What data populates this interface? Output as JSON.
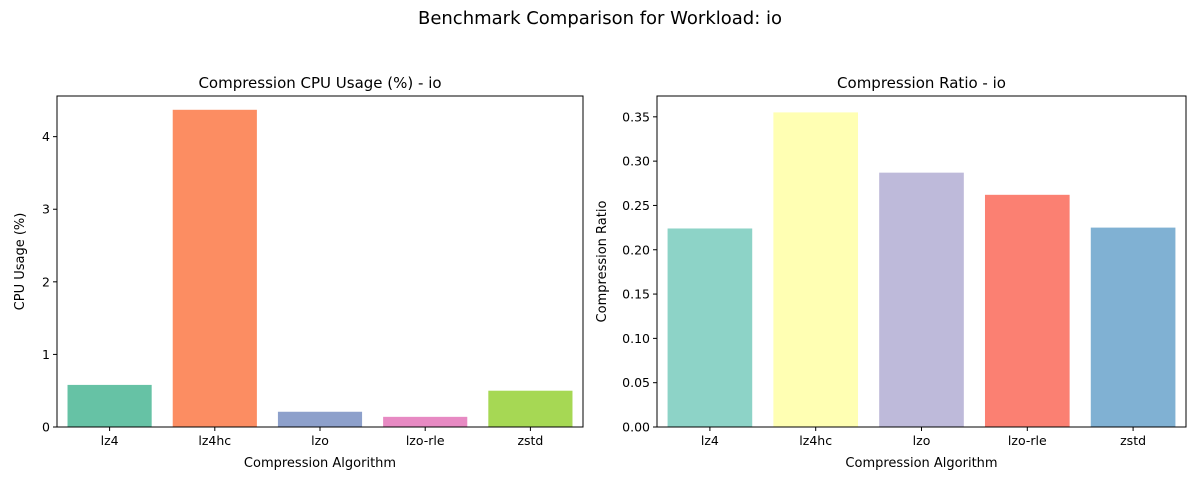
{
  "figure": {
    "suptitle": "Benchmark Comparison for Workload: io"
  },
  "chart_data": [
    {
      "type": "bar",
      "title": "Compression CPU Usage (%) - io",
      "xlabel": "Compression Algorithm",
      "ylabel": "CPU Usage (%)",
      "categories": [
        "lz4",
        "lz4hc",
        "lzo",
        "lzo-rle",
        "zstd"
      ],
      "values": [
        0.58,
        4.37,
        0.21,
        0.14,
        0.5
      ],
      "colors": [
        "#66c2a5",
        "#fc8d62",
        "#8da0cb",
        "#e78ac3",
        "#a6d854"
      ],
      "ylim": [
        0,
        4.56
      ],
      "yticks": [
        0,
        1,
        2,
        3,
        4
      ],
      "ytick_labels": [
        "0",
        "1",
        "2",
        "3",
        "4"
      ],
      "grid": false
    },
    {
      "type": "bar",
      "title": "Compression Ratio - io",
      "xlabel": "Compression Algorithm",
      "ylabel": "Compression Ratio",
      "categories": [
        "lz4",
        "lz4hc",
        "lzo",
        "lzo-rle",
        "zstd"
      ],
      "values": [
        0.224,
        0.355,
        0.287,
        0.262,
        0.225
      ],
      "colors": [
        "#8dd3c7",
        "#ffffb3",
        "#bebada",
        "#fb8072",
        "#80b1d3"
      ],
      "ylim": [
        0,
        0.3735
      ],
      "yticks": [
        0,
        0.05,
        0.1,
        0.15,
        0.2,
        0.25,
        0.3,
        0.35
      ],
      "ytick_labels": [
        "0.00",
        "0.05",
        "0.10",
        "0.15",
        "0.20",
        "0.25",
        "0.30",
        "0.35"
      ],
      "grid": false
    }
  ]
}
